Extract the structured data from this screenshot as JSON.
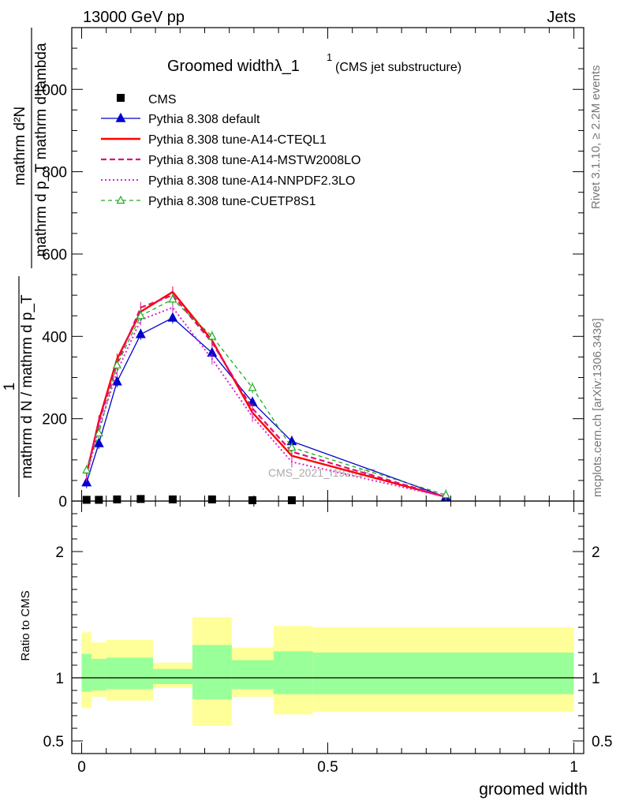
{
  "header": {
    "left": "13000 GeV pp",
    "right": "Jets"
  },
  "side_labels": {
    "rivet": "Rivet 3.1.10, ≥ 2.2M events",
    "mcplots": "mcplots.cern.ch [arXiv:1306.3436]"
  },
  "watermark": "CMS_2021_I1920187",
  "chart_data": {
    "type": "line",
    "title": "Groomed widthλ_1",
    "title_sup": "1",
    "subtitle": "(CMS jet substructure)",
    "xlabel": "groomed width",
    "ylabel_main": "1 / (mathrm d N / mathrm d p_T) · mathrm d²N / (mathrm d p_T mathrm d lambda)",
    "ylabel_top_num": "mathrm d²N",
    "ylabel_top_den": "mathrm d p_T mathrm d lambda",
    "ylabel_bot_num": "1",
    "ylabel_bot_den": "mathrm d N / mathrm d p_T",
    "ylabel_ratio": "Ratio to CMS",
    "xlim": [
      -0.02,
      1.02
    ],
    "ylim": [
      0,
      1150
    ],
    "ratio_ylim": [
      0.4,
      2.4
    ],
    "x_ticks": [
      {
        "v": 0,
        "label": "0"
      },
      {
        "v": 0.5,
        "label": "0.5"
      },
      {
        "v": 1,
        "label": "1"
      }
    ],
    "y_ticks": [
      {
        "v": 0,
        "label": "0"
      },
      {
        "v": 200,
        "label": "200"
      },
      {
        "v": 400,
        "label": "400"
      },
      {
        "v": 600,
        "label": "600"
      },
      {
        "v": 800,
        "label": "800"
      },
      {
        "v": 1000,
        "label": "1000"
      }
    ],
    "ratio_ticks": [
      {
        "v": 0.5,
        "label": "0.5"
      },
      {
        "v": 1,
        "label": "1"
      },
      {
        "v": 2,
        "label": "2"
      }
    ],
    "x": [
      0.01,
      0.035,
      0.072,
      0.12,
      0.185,
      0.265,
      0.347,
      0.427,
      0.74
    ],
    "bin_edges": [
      0,
      0.02,
      0.05,
      0.095,
      0.145,
      0.225,
      0.305,
      0.39,
      0.47,
      1.0
    ],
    "data": {
      "name": "CMS",
      "values": [
        3,
        3,
        4,
        5,
        4,
        4,
        2,
        2,
        0
      ],
      "ratio_bands": [
        {
          "x0": 0.0,
          "x1": 0.02,
          "stat": [
            0.89,
            1.19
          ],
          "total": [
            0.76,
            1.36
          ]
        },
        {
          "x0": 0.02,
          "x1": 0.05,
          "stat": [
            0.9,
            1.15
          ],
          "total": [
            0.85,
            1.28
          ]
        },
        {
          "x0": 0.05,
          "x1": 0.145,
          "stat": [
            0.91,
            1.16
          ],
          "total": [
            0.82,
            1.3
          ]
        },
        {
          "x0": 0.145,
          "x1": 0.225,
          "stat": [
            0.95,
            1.07
          ],
          "total": [
            0.92,
            1.12
          ]
        },
        {
          "x0": 0.225,
          "x1": 0.305,
          "stat": [
            0.83,
            1.26
          ],
          "total": [
            0.62,
            1.48
          ]
        },
        {
          "x0": 0.305,
          "x1": 0.39,
          "stat": [
            0.91,
            1.14
          ],
          "total": [
            0.85,
            1.24
          ]
        },
        {
          "x0": 0.39,
          "x1": 0.47,
          "stat": [
            0.87,
            1.21
          ],
          "total": [
            0.71,
            1.41
          ]
        },
        {
          "x0": 0.47,
          "x1": 1.0,
          "stat": [
            0.87,
            1.2
          ],
          "total": [
            0.73,
            1.4
          ]
        }
      ]
    },
    "series": [
      {
        "name": "Pythia 8.308 default",
        "color": "#0000cc",
        "dash": "",
        "width": 1.3,
        "marker": "triangle-filled",
        "values": [
          45,
          140,
          290,
          405,
          445,
          360,
          240,
          145,
          10
        ]
      },
      {
        "name": "Pythia 8.308 tune-A14-CTEQL1",
        "color": "#ff0000",
        "dash": "",
        "width": 2.4,
        "marker": "none",
        "values": [
          65,
          195,
          345,
          460,
          508,
          390,
          215,
          110,
          10
        ]
      },
      {
        "name": "Pythia 8.308 tune-A14-MSTW2008LO",
        "color": "#e0107a",
        "dash": "7,4",
        "width": 2.2,
        "marker": "none",
        "values": [
          70,
          190,
          335,
          470,
          500,
          385,
          225,
          120,
          10
        ]
      },
      {
        "name": "Pythia 8.308 tune-A14-NNPDF2.3LO",
        "color": "#dd22cc",
        "dash": "2,3",
        "width": 2.0,
        "marker": "none",
        "values": [
          60,
          175,
          315,
          440,
          470,
          345,
          205,
          95,
          10
        ]
      },
      {
        "name": "Pythia 8.308 tune-CUETP8S1",
        "color": "#22aa22",
        "dash": "5,4",
        "width": 1.3,
        "marker": "triangle-open",
        "values": [
          75,
          165,
          330,
          450,
          490,
          400,
          275,
          130,
          15
        ]
      }
    ]
  }
}
